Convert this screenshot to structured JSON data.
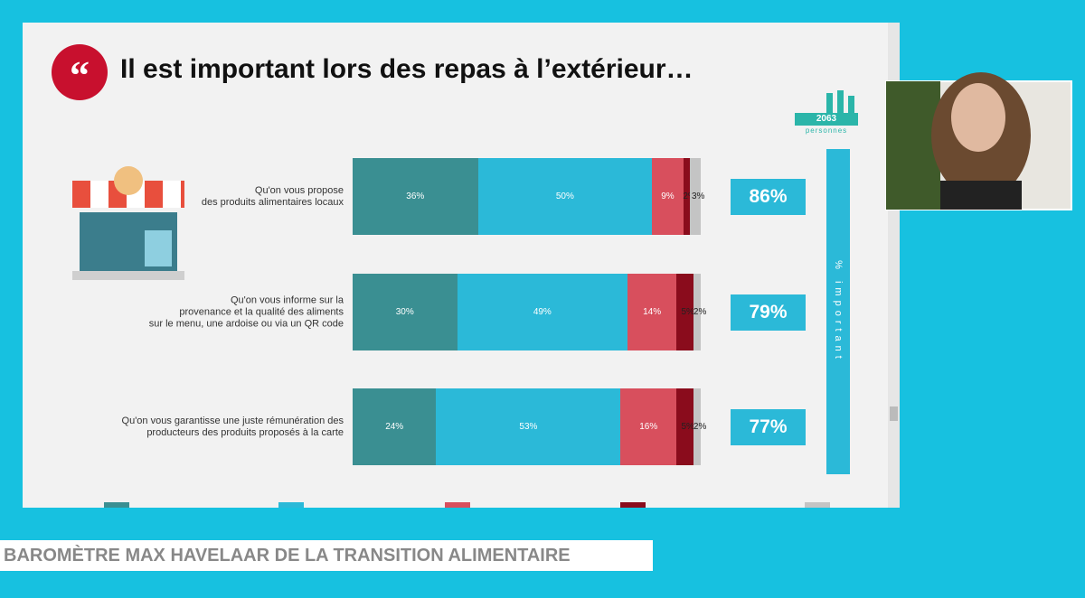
{
  "slide_title": "Il est important lors des repas à l’extérieur…",
  "badge": {
    "count": "2063",
    "caption": "personnes"
  },
  "side_label": "% important",
  "banner": "BAROMÈTRE MAX HAVELAAR DE LA TRANSITION ALIMENTAIRE",
  "chart_data": {
    "type": "bar",
    "orientation": "horizontal",
    "stacked": true,
    "categories": [
      "Qu'on vous propose\ndes produits alimentaires locaux",
      "Qu'on vous informe sur la\nprovenance et la qualité des aliments\nsur le menu, une ardoise ou via un QR code",
      "Qu'on vous garantisse une juste rémunération des\nproducteurs des produits proposés à la carte"
    ],
    "xlim": [
      0,
      100
    ],
    "series": [
      {
        "color": "#3a8f92",
        "values": [
          36,
          30,
          24
        ],
        "value_labels": [
          "36%",
          "30%",
          "24%"
        ]
      },
      {
        "color": "#2bb9d8",
        "values": [
          50,
          49,
          53
        ],
        "value_labels": [
          "50%",
          "49%",
          "53%"
        ]
      },
      {
        "color": "#d84f5d",
        "values": [
          9,
          14,
          16
        ],
        "value_labels": [
          "9%",
          "14%",
          "16%"
        ]
      },
      {
        "color": "#8a0c1c",
        "values": [
          2,
          5,
          5
        ],
        "value_labels": [
          "2%",
          "5%",
          "5%"
        ]
      },
      {
        "color": "#c4c4c4",
        "values": [
          3,
          2,
          2
        ],
        "value_labels": [
          "3%",
          "2%",
          "2%"
        ]
      }
    ],
    "totals": {
      "color": "#2bb9d8",
      "values": [
        86,
        79,
        77
      ],
      "value_labels": [
        "86%",
        "79%",
        "77%"
      ]
    }
  }
}
